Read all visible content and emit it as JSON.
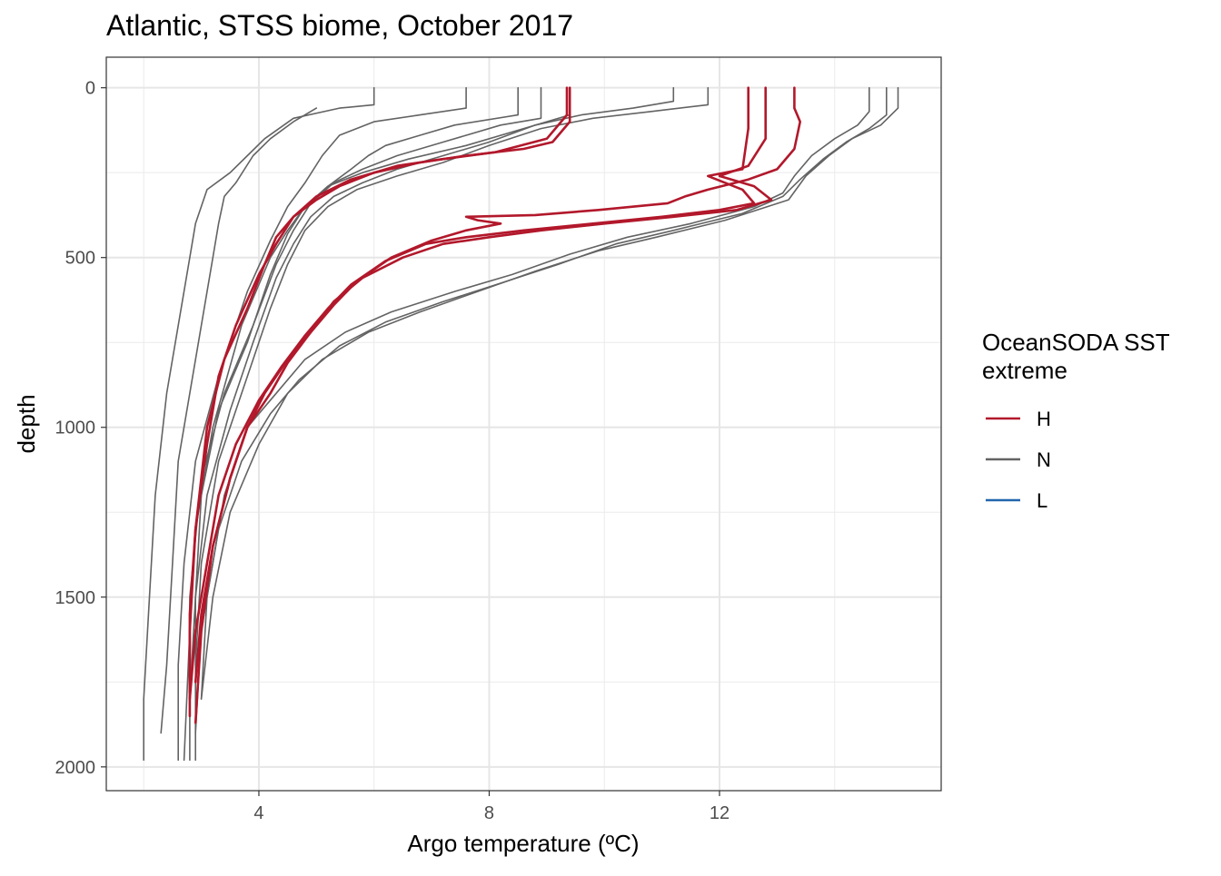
{
  "chart_data": {
    "type": "line",
    "title": "Atlantic, STSS biome, October 2017",
    "xlabel": "Argo temperature (ºC)",
    "ylabel": "depth",
    "xlim": [
      1.35,
      15.85
    ],
    "ylim": [
      2070,
      -90
    ],
    "y_reversed": true,
    "x_ticks": [
      4,
      8,
      12
    ],
    "y_ticks": [
      0,
      500,
      1000,
      1500,
      2000
    ],
    "grid": true,
    "legend": {
      "title_lines": [
        "OceanSODA SST",
        "extreme"
      ],
      "placement": "right",
      "entries": [
        {
          "label": "H",
          "color": "#b2182b"
        },
        {
          "label": "N",
          "color": "#636363"
        },
        {
          "label": "L",
          "color": "#2166ac"
        }
      ]
    },
    "series": [
      {
        "group": "N",
        "points": [
          [
            6.0,
            0
          ],
          [
            6.0,
            50
          ],
          [
            5.4,
            60
          ],
          [
            4.6,
            90
          ],
          [
            4.1,
            150
          ],
          [
            3.8,
            200
          ],
          [
            3.5,
            250
          ],
          [
            3.1,
            300
          ],
          [
            2.9,
            400
          ],
          [
            2.8,
            500
          ],
          [
            2.6,
            700
          ],
          [
            2.4,
            900
          ],
          [
            2.2,
            1200
          ],
          [
            2.1,
            1500
          ],
          [
            2.0,
            1800
          ],
          [
            2.0,
            1980
          ]
        ]
      },
      {
        "group": "N",
        "points": [
          [
            5.0,
            60
          ],
          [
            4.6,
            100
          ],
          [
            4.2,
            150
          ],
          [
            3.9,
            200
          ],
          [
            3.6,
            280
          ],
          [
            3.4,
            320
          ],
          [
            3.3,
            400
          ],
          [
            3.2,
            500
          ],
          [
            3.0,
            700
          ],
          [
            2.8,
            900
          ],
          [
            2.6,
            1100
          ],
          [
            2.5,
            1400
          ],
          [
            2.4,
            1700
          ],
          [
            2.3,
            1900
          ]
        ]
      },
      {
        "group": "N",
        "points": [
          [
            7.6,
            0
          ],
          [
            7.6,
            60
          ],
          [
            6.8,
            80
          ],
          [
            6.0,
            100
          ],
          [
            5.4,
            140
          ],
          [
            5.1,
            200
          ],
          [
            4.8,
            280
          ],
          [
            4.5,
            350
          ],
          [
            4.2,
            450
          ],
          [
            3.8,
            600
          ],
          [
            3.3,
            850
          ],
          [
            2.9,
            1100
          ],
          [
            2.7,
            1400
          ],
          [
            2.6,
            1700
          ],
          [
            2.6,
            1980
          ]
        ]
      },
      {
        "group": "N",
        "points": [
          [
            8.5,
            0
          ],
          [
            8.5,
            80
          ],
          [
            7.4,
            110
          ],
          [
            6.8,
            140
          ],
          [
            6.2,
            170
          ],
          [
            5.9,
            200
          ],
          [
            5.6,
            240
          ],
          [
            5.2,
            290
          ],
          [
            4.8,
            350
          ],
          [
            4.5,
            420
          ],
          [
            4.2,
            500
          ],
          [
            3.7,
            700
          ],
          [
            3.2,
            1000
          ],
          [
            2.9,
            1300
          ],
          [
            2.8,
            1600
          ],
          [
            2.7,
            1980
          ]
        ]
      },
      {
        "group": "N",
        "points": [
          [
            8.9,
            0
          ],
          [
            8.9,
            90
          ],
          [
            8.2,
            110
          ],
          [
            7.2,
            160
          ],
          [
            6.4,
            200
          ],
          [
            5.8,
            240
          ],
          [
            5.3,
            280
          ],
          [
            4.9,
            340
          ],
          [
            4.6,
            420
          ],
          [
            4.3,
            520
          ],
          [
            3.9,
            700
          ],
          [
            3.4,
            900
          ],
          [
            3.0,
            1150
          ],
          [
            2.8,
            1500
          ],
          [
            2.8,
            1980
          ]
        ]
      },
      {
        "group": "N",
        "points": [
          [
            9.4,
            0
          ],
          [
            9.4,
            80
          ],
          [
            8.6,
            120
          ],
          [
            7.6,
            170
          ],
          [
            6.6,
            210
          ],
          [
            5.8,
            250
          ],
          [
            5.2,
            290
          ],
          [
            4.8,
            350
          ],
          [
            4.5,
            430
          ],
          [
            4.2,
            550
          ],
          [
            3.8,
            750
          ],
          [
            3.3,
            950
          ],
          [
            3.0,
            1200
          ],
          [
            2.9,
            1500
          ],
          [
            2.9,
            1980
          ]
        ]
      },
      {
        "group": "N",
        "points": [
          [
            11.2,
            0
          ],
          [
            11.2,
            40
          ],
          [
            10.5,
            60
          ],
          [
            9.6,
            80
          ],
          [
            8.8,
            110
          ],
          [
            8.0,
            160
          ],
          [
            7.2,
            200
          ],
          [
            6.4,
            240
          ],
          [
            5.8,
            280
          ],
          [
            5.3,
            320
          ],
          [
            4.9,
            380
          ],
          [
            4.6,
            460
          ],
          [
            4.3,
            560
          ],
          [
            3.9,
            750
          ],
          [
            3.5,
            950
          ],
          [
            3.1,
            1200
          ],
          [
            2.9,
            1500
          ],
          [
            2.8,
            1800
          ]
        ]
      },
      {
        "group": "N",
        "points": [
          [
            11.8,
            0
          ],
          [
            11.8,
            50
          ],
          [
            10.8,
            70
          ],
          [
            9.8,
            90
          ],
          [
            8.9,
            120
          ],
          [
            8.0,
            170
          ],
          [
            7.2,
            220
          ],
          [
            6.4,
            260
          ],
          [
            5.7,
            300
          ],
          [
            5.2,
            350
          ],
          [
            4.8,
            420
          ],
          [
            4.5,
            520
          ],
          [
            4.2,
            650
          ],
          [
            3.8,
            850
          ],
          [
            3.3,
            1100
          ],
          [
            3.0,
            1400
          ],
          [
            2.9,
            1700
          ]
        ]
      },
      {
        "group": "N",
        "points": [
          [
            14.6,
            0
          ],
          [
            14.6,
            70
          ],
          [
            14.4,
            110
          ],
          [
            14.0,
            150
          ],
          [
            13.6,
            200
          ],
          [
            13.3,
            260
          ],
          [
            13.1,
            310
          ],
          [
            12.6,
            350
          ],
          [
            11.5,
            400
          ],
          [
            10.4,
            440
          ],
          [
            9.4,
            490
          ],
          [
            8.4,
            550
          ],
          [
            7.4,
            600
          ],
          [
            6.3,
            660
          ],
          [
            5.5,
            720
          ],
          [
            4.8,
            800
          ],
          [
            4.3,
            900
          ],
          [
            3.8,
            1000
          ],
          [
            3.4,
            1200
          ],
          [
            3.1,
            1500
          ],
          [
            3.0,
            1800
          ]
        ]
      },
      {
        "group": "N",
        "points": [
          [
            14.9,
            0
          ],
          [
            14.9,
            80
          ],
          [
            14.6,
            120
          ],
          [
            14.2,
            160
          ],
          [
            13.8,
            210
          ],
          [
            13.4,
            270
          ],
          [
            13.1,
            320
          ],
          [
            12.4,
            370
          ],
          [
            11.2,
            420
          ],
          [
            10.2,
            460
          ],
          [
            9.2,
            520
          ],
          [
            8.3,
            570
          ],
          [
            7.2,
            630
          ],
          [
            6.2,
            690
          ],
          [
            5.4,
            760
          ],
          [
            4.7,
            860
          ],
          [
            4.2,
            960
          ],
          [
            3.7,
            1100
          ],
          [
            3.3,
            1300
          ],
          [
            3.0,
            1600
          ],
          [
            2.9,
            1900
          ]
        ]
      },
      {
        "group": "N",
        "points": [
          [
            15.1,
            0
          ],
          [
            15.1,
            60
          ],
          [
            14.8,
            110
          ],
          [
            14.3,
            150
          ],
          [
            13.9,
            200
          ],
          [
            13.5,
            260
          ],
          [
            13.2,
            330
          ],
          [
            12.1,
            390
          ],
          [
            10.9,
            440
          ],
          [
            9.9,
            480
          ],
          [
            8.8,
            540
          ],
          [
            7.8,
            600
          ],
          [
            6.8,
            660
          ],
          [
            5.9,
            720
          ],
          [
            5.1,
            800
          ],
          [
            4.5,
            900
          ],
          [
            4.0,
            1050
          ],
          [
            3.5,
            1250
          ],
          [
            3.2,
            1500
          ],
          [
            3.0,
            1800
          ]
        ]
      },
      {
        "group": "H",
        "points": [
          [
            9.35,
            0
          ],
          [
            9.35,
            80
          ],
          [
            9.0,
            150
          ],
          [
            8.1,
            190
          ],
          [
            7.2,
            210
          ],
          [
            6.4,
            230
          ],
          [
            5.6,
            270
          ],
          [
            5.0,
            320
          ],
          [
            4.6,
            380
          ],
          [
            4.3,
            460
          ],
          [
            4.0,
            550
          ],
          [
            3.6,
            700
          ],
          [
            3.3,
            850
          ],
          [
            3.1,
            1050
          ],
          [
            2.9,
            1300
          ],
          [
            2.8,
            1550
          ],
          [
            2.8,
            1780
          ]
        ]
      },
      {
        "group": "H",
        "points": [
          [
            9.4,
            0
          ],
          [
            9.4,
            100
          ],
          [
            9.1,
            160
          ],
          [
            8.6,
            180
          ],
          [
            7.6,
            200
          ],
          [
            6.8,
            220
          ],
          [
            6.0,
            250
          ],
          [
            5.4,
            290
          ],
          [
            5.0,
            330
          ],
          [
            4.6,
            380
          ],
          [
            4.3,
            440
          ],
          [
            4.1,
            520
          ],
          [
            3.8,
            650
          ],
          [
            3.4,
            800
          ],
          [
            3.1,
            1000
          ],
          [
            2.9,
            1300
          ],
          [
            2.8,
            1600
          ],
          [
            2.8,
            1850
          ]
        ]
      },
      {
        "group": "H",
        "points": [
          [
            12.5,
            0
          ],
          [
            12.5,
            120
          ],
          [
            12.4,
            240
          ],
          [
            11.8,
            260
          ],
          [
            12.4,
            300
          ],
          [
            12.6,
            340
          ],
          [
            12.0,
            360
          ],
          [
            11.0,
            380
          ],
          [
            9.8,
            400
          ],
          [
            8.6,
            420
          ],
          [
            7.6,
            440
          ],
          [
            6.9,
            460
          ],
          [
            6.2,
            510
          ],
          [
            5.6,
            580
          ],
          [
            5.2,
            650
          ],
          [
            4.8,
            730
          ],
          [
            4.4,
            820
          ],
          [
            4.0,
            920
          ],
          [
            3.6,
            1050
          ],
          [
            3.3,
            1200
          ],
          [
            3.1,
            1400
          ],
          [
            2.9,
            1600
          ],
          [
            2.8,
            1800
          ]
        ]
      },
      {
        "group": "H",
        "points": [
          [
            12.8,
            0
          ],
          [
            12.8,
            150
          ],
          [
            12.5,
            230
          ],
          [
            12.0,
            260
          ],
          [
            12.6,
            290
          ],
          [
            12.9,
            330
          ],
          [
            12.3,
            360
          ],
          [
            11.2,
            380
          ],
          [
            10.0,
            400
          ],
          [
            8.9,
            420
          ],
          [
            8.0,
            440
          ],
          [
            7.2,
            460
          ],
          [
            6.5,
            500
          ],
          [
            5.8,
            560
          ],
          [
            5.3,
            630
          ],
          [
            4.9,
            720
          ],
          [
            4.5,
            800
          ],
          [
            4.1,
            900
          ],
          [
            3.8,
            1000
          ],
          [
            3.5,
            1150
          ],
          [
            3.2,
            1350
          ],
          [
            3.0,
            1600
          ],
          [
            2.9,
            1870
          ]
        ]
      },
      {
        "group": "H",
        "points": [
          [
            13.3,
            0
          ],
          [
            13.3,
            60
          ],
          [
            13.4,
            100
          ],
          [
            13.3,
            180
          ],
          [
            13.0,
            240
          ],
          [
            12.5,
            270
          ],
          [
            11.8,
            300
          ],
          [
            11.4,
            320
          ],
          [
            11.1,
            340
          ],
          [
            9.9,
            360
          ],
          [
            8.8,
            375
          ],
          [
            7.6,
            380
          ],
          [
            7.8,
            390
          ],
          [
            8.2,
            400
          ],
          [
            7.6,
            420
          ],
          [
            7.0,
            450
          ],
          [
            6.3,
            500
          ],
          [
            5.7,
            570
          ],
          [
            5.3,
            640
          ],
          [
            4.9,
            720
          ],
          [
            4.5,
            810
          ],
          [
            4.2,
            900
          ],
          [
            3.8,
            1000
          ],
          [
            3.5,
            1150
          ],
          [
            3.2,
            1350
          ],
          [
            3.0,
            1550
          ],
          [
            2.9,
            1750
          ]
        ]
      }
    ]
  }
}
